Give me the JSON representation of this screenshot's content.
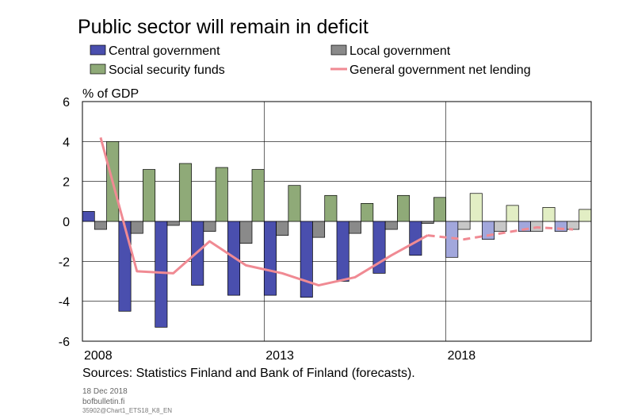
{
  "chart_data": {
    "type": "bar",
    "title": "Public sector will remain in deficit",
    "ylabel": "% of GDP",
    "ylim": [
      -6,
      6
    ],
    "yticks": [
      "6",
      "4",
      "2",
      "0",
      "-2",
      "-4",
      "-6"
    ],
    "ytick_values": [
      6,
      4,
      2,
      0,
      -2,
      -4,
      -6
    ],
    "x": [
      2008,
      2009,
      2010,
      2011,
      2012,
      2013,
      2014,
      2015,
      2016,
      2017,
      2018,
      2019,
      2020,
      2021
    ],
    "xtick_labels": [
      {
        "year": 2008,
        "label": "2008"
      },
      {
        "year": 2013,
        "label": "2013"
      },
      {
        "year": 2018,
        "label": "2018"
      }
    ],
    "forecast_from": 2018,
    "grid": true,
    "legend_position": "top",
    "series": [
      {
        "name": "Central government",
        "kind": "bar",
        "color": "#4a4fae",
        "forecast_color": "#a2a7dc",
        "values": [
          0.5,
          -4.5,
          -5.3,
          -3.2,
          -3.7,
          -3.7,
          -3.8,
          -3.0,
          -2.6,
          -1.7,
          -1.8,
          -0.9,
          -0.5,
          -0.5
        ]
      },
      {
        "name": "Local government",
        "kind": "bar",
        "color": "#8a8a8a",
        "forecast_color": "#c7c7c7",
        "values": [
          -0.4,
          -0.6,
          -0.2,
          -0.5,
          -1.1,
          -0.7,
          -0.8,
          -0.6,
          -0.4,
          -0.1,
          -0.4,
          -0.5,
          -0.5,
          -0.4
        ]
      },
      {
        "name": "Social security funds",
        "kind": "bar",
        "color": "#8faa78",
        "forecast_color": "#e2eec4",
        "values": [
          4.0,
          2.6,
          2.9,
          2.7,
          2.6,
          1.8,
          1.3,
          0.9,
          1.3,
          1.2,
          1.4,
          0.8,
          0.7,
          0.6
        ]
      },
      {
        "name": "General government net lending",
        "kind": "line",
        "color": "#f08a93",
        "values": [
          4.2,
          -2.5,
          -2.6,
          -1.0,
          -2.2,
          -2.6,
          -3.2,
          -2.8,
          -1.7,
          -0.7,
          -0.9,
          -0.6,
          -0.3,
          -0.4
        ]
      }
    ],
    "source": "Sources: Statistics Finland and Bank of Finland (forecasts).",
    "date": "18 Dec 2018",
    "site": "bofbulletin.fi",
    "chart_id": "35902@Chart1_ETS18_K8_EN"
  }
}
